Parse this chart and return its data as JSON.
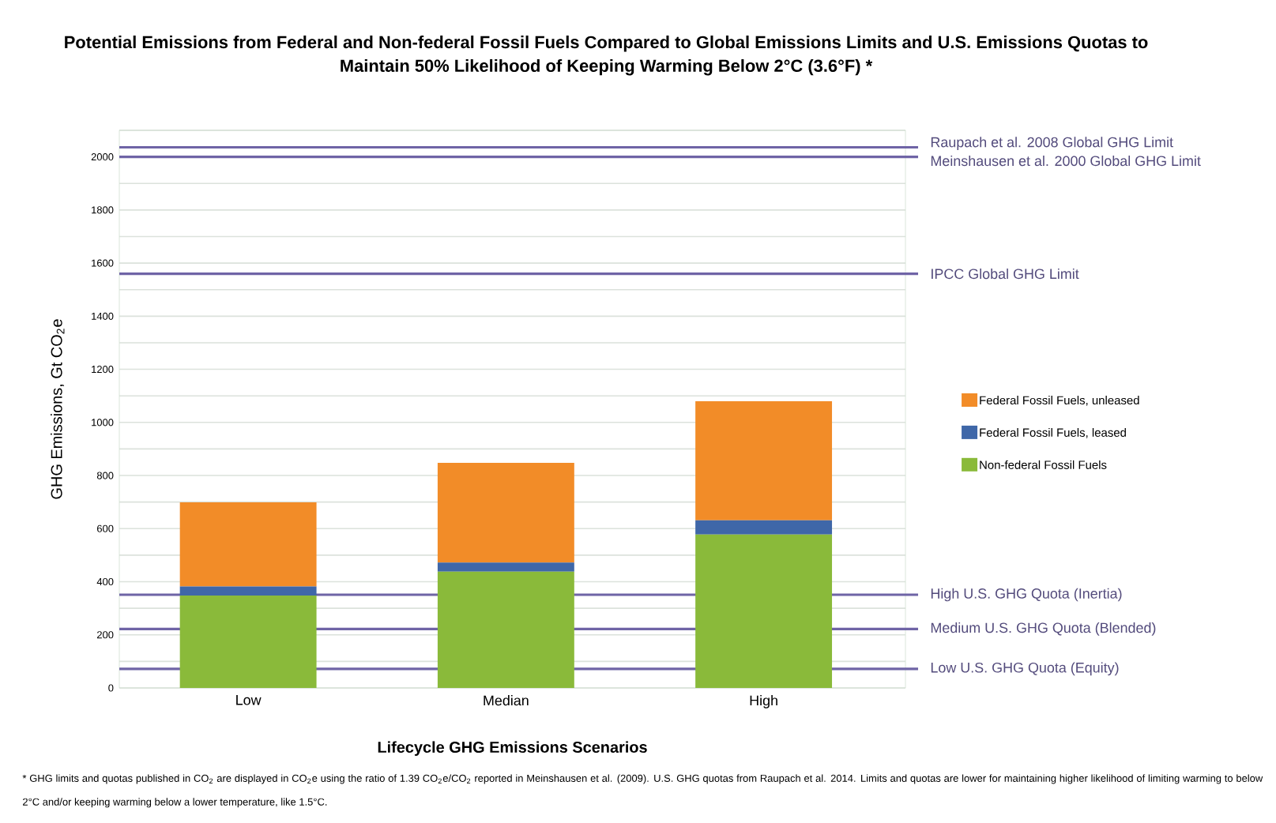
{
  "chart_data": {
    "type": "bar",
    "stacked": true,
    "title": "Potential Emissions from Federal and Non-federal Fossil Fuels Compared to Global Emissions Limits and U.S. Emissions Quotas to Maintain 50% Likelihood of Keeping Warming Below 2°C (3.6°F) *",
    "xlabel": "Lifecycle GHG Emissions Scenarios",
    "ylabel": "GHG Emissions, Gt CO$_{2}$e",
    "categories": [
      "Low",
      "Median",
      "High"
    ],
    "series": [
      {
        "name": "Non-federal Fossil Fuels",
        "color": "#8aba3a",
        "values": [
          348,
          438,
          578
        ]
      },
      {
        "name": "Federal Fossil Fuels, leased",
        "color": "#3f67a8",
        "values": [
          34,
          34,
          53
        ]
      },
      {
        "name": "Federal Fossil Fuels, unleased",
        "color": "#f28c28",
        "values": [
          317,
          376,
          449
        ]
      }
    ],
    "ylim": [
      0,
      2100
    ],
    "yticks": [
      0,
      {
        "value": 100,
        "label": null
      },
      200,
      {
        "value": 300,
        "label": null
      },
      400,
      {
        "value": 500,
        "label": null
      },
      600,
      {
        "value": 700,
        "label": null
      },
      800,
      {
        "value": 900,
        "label": null
      },
      1000,
      {
        "value": 1100,
        "label": null
      },
      1200,
      {
        "value": 1300,
        "label": null
      },
      1400,
      {
        "value": 1500,
        "label": null
      },
      1600,
      {
        "value": 1700,
        "label": null
      },
      1800,
      {
        "value": 1900,
        "label": null
      },
      2000,
      {
        "value": 2100,
        "label": null
      }
    ],
    "grid": "y",
    "legend": "right",
    "ref_lines": [
      {
        "axis": "y",
        "value": 2036,
        "label": "Raupach et al. 2008 Global GHG Limit",
        "color": "#6f64a6"
      },
      {
        "axis": "y",
        "value": 2000,
        "label": "Meinshausen et al. 2000 Global GHG Limit",
        "color": "#6f64a6"
      },
      {
        "axis": "y",
        "value": 1560,
        "label": "IPCC Global  GHG Limit",
        "color": "#6f64a6"
      },
      {
        "axis": "y",
        "value": 351,
        "label": "High  U.S. GHG Quota (Inertia)",
        "color": "#6f64a6"
      },
      {
        "axis": "y",
        "value": 222,
        "label": "Medium U.S. GHG Quota (Blended)",
        "color": "#6f64a6"
      },
      {
        "axis": "y",
        "value": 72,
        "label": "Low  U.S. GHG Quota (Equity)",
        "color": "#6f64a6"
      }
    ],
    "annotations": [
      "* GHG limits and quotas published in CO$_{2}$ are displayed in CO$_{2}$e using the ratio of 1.39 CO$_{2}$e/CO$_{2}$ reported in Meinshausen et al. (2009). U.S. GHG quotas from Raupach et al. 2014. Limits and quotas are lower for maintaining higher likelihood of limiting warming to below 2°C and/or keeping warming below a lower temperature, like 1.5°C."
    ]
  }
}
